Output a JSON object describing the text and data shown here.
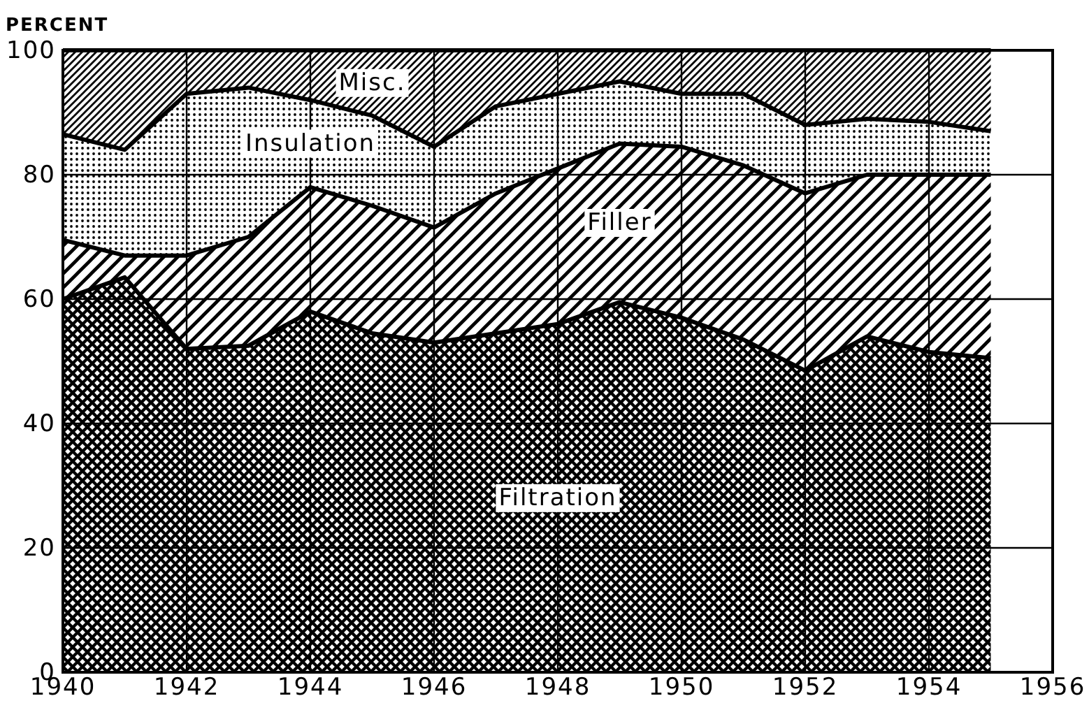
{
  "chart_data": {
    "type": "area",
    "stacked": true,
    "ylabel": "PERCENT",
    "x": [
      1940,
      1941,
      1942,
      1943,
      1944,
      1945,
      1946,
      1947,
      1948,
      1949,
      1950,
      1951,
      1952,
      1953,
      1954,
      1955
    ],
    "xlim": [
      1940,
      1956
    ],
    "xticks": [
      1940,
      1942,
      1944,
      1946,
      1948,
      1950,
      1952,
      1954,
      1956
    ],
    "ylim": [
      0,
      100
    ],
    "yticks": [
      0,
      20,
      40,
      60,
      80,
      100
    ],
    "grid": true,
    "series": [
      {
        "name": "Filtration",
        "color": "#000000",
        "values": [
          60,
          63.5,
          52,
          52.5,
          58,
          54.5,
          53,
          54.5,
          56,
          59.5,
          57,
          53.5,
          48.5,
          54,
          51.5,
          50.5
        ]
      },
      {
        "name": "Filler",
        "color": "#000000",
        "values": [
          9.5,
          3.5,
          15,
          17.5,
          20,
          20.5,
          18.5,
          22.5,
          25,
          25.5,
          27.5,
          28,
          28.5,
          26,
          28.5,
          29.5
        ]
      },
      {
        "name": "Insulation",
        "color": "#000000",
        "values": [
          17,
          17,
          26,
          24,
          14,
          14.5,
          13,
          14,
          12,
          10,
          8.5,
          11.5,
          11,
          9,
          8.5,
          7
        ]
      },
      {
        "name": "Misc.",
        "color": "#000000",
        "values": [
          13.5,
          16,
          7,
          6,
          8,
          10.5,
          15.5,
          9,
          7,
          5,
          7,
          7,
          12,
          11,
          11.5,
          13
        ]
      }
    ]
  }
}
